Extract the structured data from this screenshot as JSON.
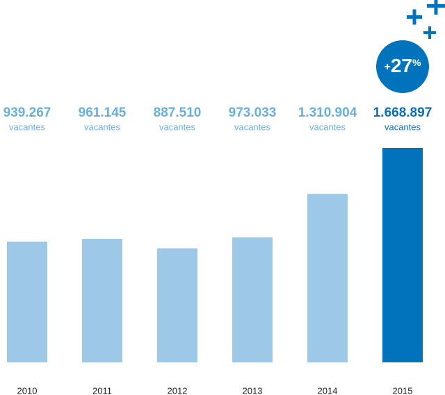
{
  "chart_data": {
    "type": "bar",
    "categories": [
      "2010",
      "2011",
      "2012",
      "2013",
      "2014",
      "2015"
    ],
    "values": [
      939267,
      961145,
      887510,
      973033,
      1310904,
      1668897
    ],
    "value_labels": [
      "939.267",
      "961.145",
      "887.510",
      "973.033",
      "1.310.904",
      "1.668.897"
    ],
    "unit_label": "vacantes",
    "colors": [
      "#9dc8e6",
      "#9dc8e6",
      "#9dc8e6",
      "#9dc8e6",
      "#9dc8e6",
      "#0073bc"
    ],
    "label_colors": [
      "#6aaedc",
      "#6aaedc",
      "#6aaedc",
      "#6aaedc",
      "#6aaedc",
      "#0a6fb5"
    ],
    "annotation": {
      "sign": "+",
      "number": "27",
      "unit": "%"
    }
  }
}
